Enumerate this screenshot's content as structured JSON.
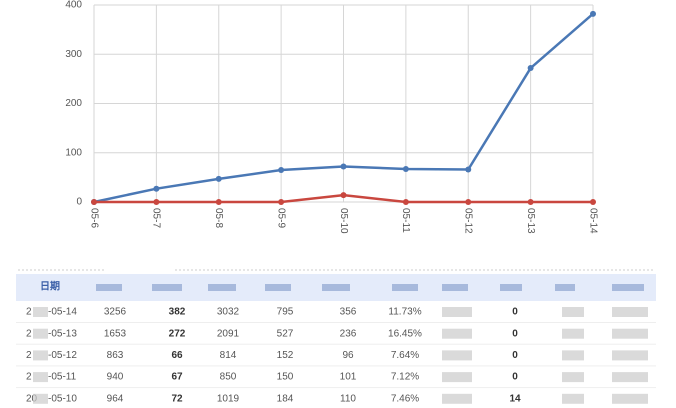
{
  "chart_data": {
    "type": "line",
    "categories": [
      "05-6",
      "05-7",
      "05-8",
      "05-9",
      "05-10",
      "05-11",
      "05-12",
      "05-13",
      "05-14"
    ],
    "series": [
      {
        "color": "#4a78b5",
        "values": [
          0,
          27,
          47,
          65,
          72,
          67,
          66,
          272,
          382
        ]
      },
      {
        "color": "#c9473f",
        "values": [
          0,
          0,
          0,
          0,
          14,
          0,
          0,
          0,
          0
        ]
      }
    ],
    "ylim": [
      0,
      400
    ],
    "yticks": [
      0,
      100,
      200,
      300,
      400
    ],
    "grid": true
  },
  "table": {
    "header": "日期",
    "rows": [
      {
        "prefix": "2",
        "date": "-05-14",
        "cells": [
          "3256",
          "382",
          "3032",
          "795",
          "356",
          "11.73%",
          "0"
        ]
      },
      {
        "prefix": "2",
        "date": "-05-13",
        "cells": [
          "1653",
          "272",
          "2091",
          "527",
          "236",
          "16.45%",
          "0"
        ]
      },
      {
        "prefix": "2",
        "date": "-05-12",
        "cells": [
          "863",
          "66",
          "814",
          "152",
          "96",
          "7.64%",
          "0"
        ]
      },
      {
        "prefix": "2",
        "date": "-05-11",
        "cells": [
          "940",
          "67",
          "850",
          "150",
          "101",
          "7.12%",
          "0"
        ]
      },
      {
        "prefix": "20",
        "date": "-05-10",
        "cells": [
          "964",
          "72",
          "1019",
          "184",
          "110",
          "7.46%",
          "14"
        ]
      }
    ]
  }
}
